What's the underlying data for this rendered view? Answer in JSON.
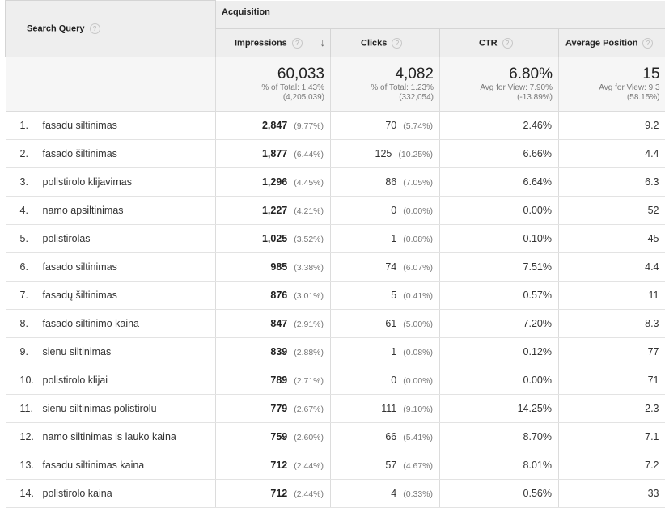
{
  "columns": {
    "search_query": "Search Query",
    "acquisition": "Acquisition",
    "impressions": "Impressions",
    "clicks": "Clicks",
    "ctr": "CTR",
    "avg_position": "Average Position",
    "help_glyph": "?",
    "sort_glyph": "↓"
  },
  "totals": {
    "impressions": {
      "value": "60,033",
      "line1": "% of Total: 1.43%",
      "line2": "(4,205,039)"
    },
    "clicks": {
      "value": "4,082",
      "line1": "% of Total: 1.23%",
      "line2": "(332,054)"
    },
    "ctr": {
      "value": "6.80%",
      "line1": "Avg for View: 7.90%",
      "line2": "(-13.89%)"
    },
    "avg_position": {
      "value": "15",
      "line1": "Avg for View: 9.3",
      "line2": "(58.15%)"
    }
  },
  "rows": [
    {
      "idx": "1.",
      "query": "fasadu siltinimas",
      "imp": "2,847",
      "imp_pct": "(9.77%)",
      "clicks": "70",
      "clicks_pct": "(5.74%)",
      "ctr": "2.46%",
      "pos": "9.2"
    },
    {
      "idx": "2.",
      "query": "fasado šiltinimas",
      "imp": "1,877",
      "imp_pct": "(6.44%)",
      "clicks": "125",
      "clicks_pct": "(10.25%)",
      "ctr": "6.66%",
      "pos": "4.4"
    },
    {
      "idx": "3.",
      "query": "polistirolo klijavimas",
      "imp": "1,296",
      "imp_pct": "(4.45%)",
      "clicks": "86",
      "clicks_pct": "(7.05%)",
      "ctr": "6.64%",
      "pos": "6.3"
    },
    {
      "idx": "4.",
      "query": "namo apsiltinimas",
      "imp": "1,227",
      "imp_pct": "(4.21%)",
      "clicks": "0",
      "clicks_pct": "(0.00%)",
      "ctr": "0.00%",
      "pos": "52"
    },
    {
      "idx": "5.",
      "query": "polistirolas",
      "imp": "1,025",
      "imp_pct": "(3.52%)",
      "clicks": "1",
      "clicks_pct": "(0.08%)",
      "ctr": "0.10%",
      "pos": "45"
    },
    {
      "idx": "6.",
      "query": "fasado siltinimas",
      "imp": "985",
      "imp_pct": "(3.38%)",
      "clicks": "74",
      "clicks_pct": "(6.07%)",
      "ctr": "7.51%",
      "pos": "4.4"
    },
    {
      "idx": "7.",
      "query": "fasadų šiltinimas",
      "imp": "876",
      "imp_pct": "(3.01%)",
      "clicks": "5",
      "clicks_pct": "(0.41%)",
      "ctr": "0.57%",
      "pos": "11"
    },
    {
      "idx": "8.",
      "query": "fasado siltinimo kaina",
      "imp": "847",
      "imp_pct": "(2.91%)",
      "clicks": "61",
      "clicks_pct": "(5.00%)",
      "ctr": "7.20%",
      "pos": "8.3"
    },
    {
      "idx": "9.",
      "query": "sienu siltinimas",
      "imp": "839",
      "imp_pct": "(2.88%)",
      "clicks": "1",
      "clicks_pct": "(0.08%)",
      "ctr": "0.12%",
      "pos": "77"
    },
    {
      "idx": "10.",
      "query": "polistirolo klijai",
      "imp": "789",
      "imp_pct": "(2.71%)",
      "clicks": "0",
      "clicks_pct": "(0.00%)",
      "ctr": "0.00%",
      "pos": "71"
    },
    {
      "idx": "11.",
      "query": "sienu siltinimas polistirolu",
      "imp": "779",
      "imp_pct": "(2.67%)",
      "clicks": "111",
      "clicks_pct": "(9.10%)",
      "ctr": "14.25%",
      "pos": "2.3"
    },
    {
      "idx": "12.",
      "query": "namo siltinimas is lauko kaina",
      "imp": "759",
      "imp_pct": "(2.60%)",
      "clicks": "66",
      "clicks_pct": "(5.41%)",
      "ctr": "8.70%",
      "pos": "7.1"
    },
    {
      "idx": "13.",
      "query": "fasadu siltinimas kaina",
      "imp": "712",
      "imp_pct": "(2.44%)",
      "clicks": "57",
      "clicks_pct": "(4.67%)",
      "ctr": "8.01%",
      "pos": "7.2"
    },
    {
      "idx": "14.",
      "query": "polistirolo kaina",
      "imp": "712",
      "imp_pct": "(2.44%)",
      "clicks": "4",
      "clicks_pct": "(0.33%)",
      "ctr": "0.56%",
      "pos": "33"
    }
  ]
}
